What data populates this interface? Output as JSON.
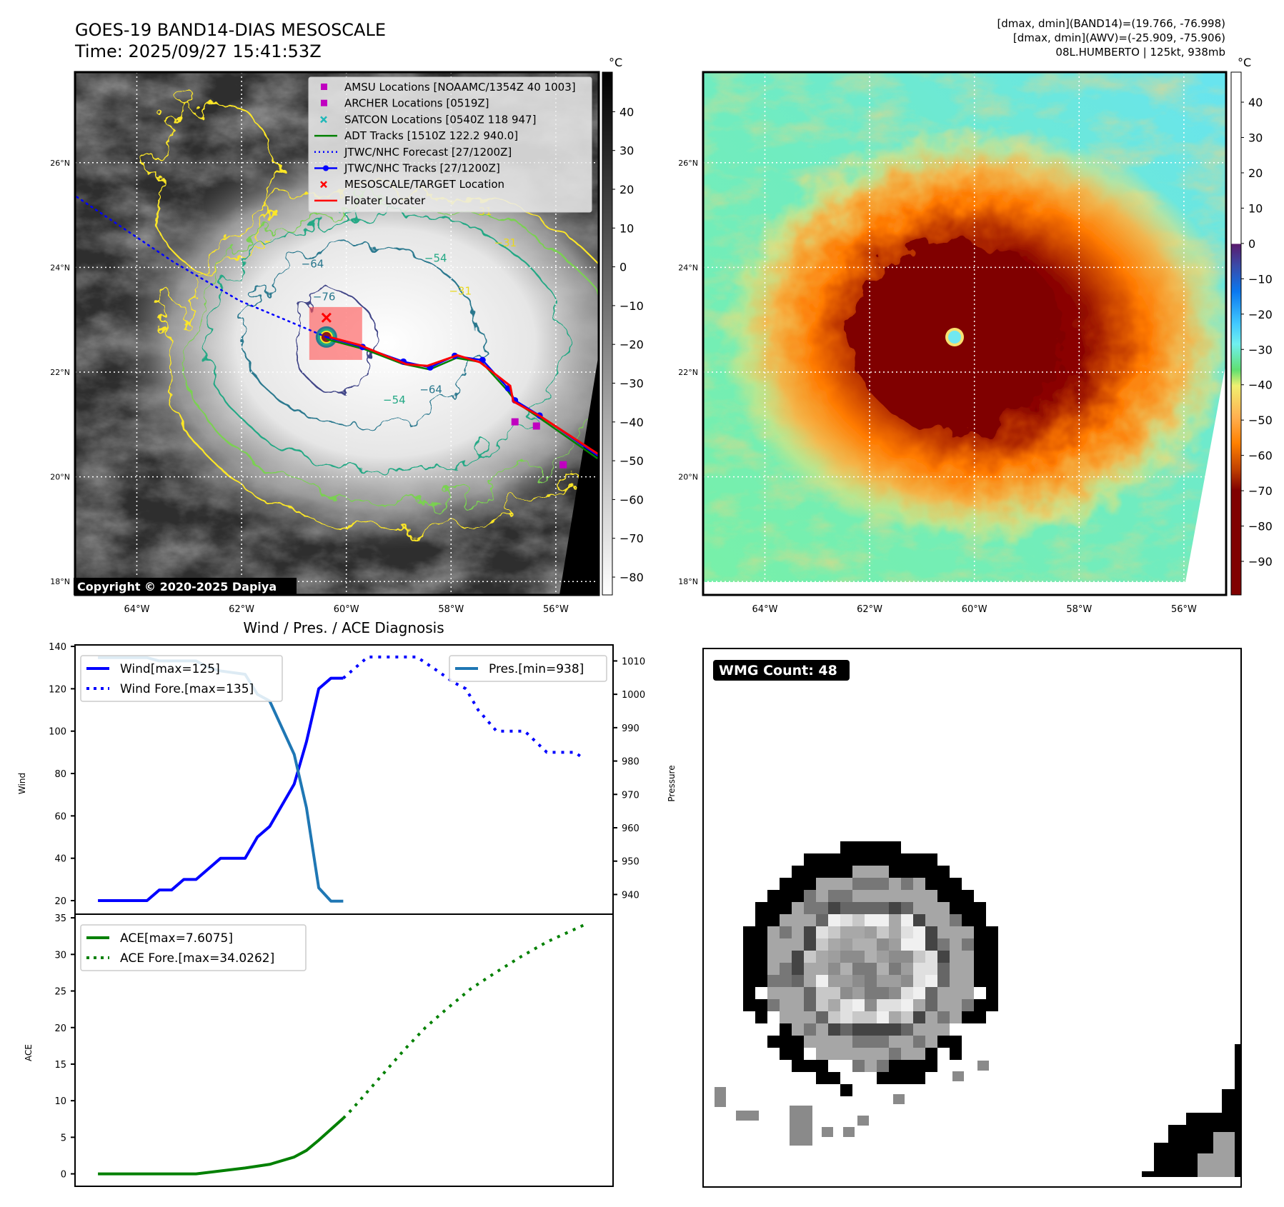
{
  "left_map": {
    "title": "GOES-19 BAND14-DIAS MESOSCALE",
    "time": "Time: 2025/09/27 15:41:53Z",
    "colorbar_unit": "°C",
    "colorbar_ticks": [
      "40",
      "30",
      "20",
      "10",
      "0",
      "−10",
      "−20",
      "−30",
      "−40",
      "−50",
      "−60",
      "−70",
      "−80"
    ],
    "colorbar_tick_values": [
      40,
      30,
      20,
      10,
      0,
      -10,
      -20,
      -30,
      -40,
      -50,
      -60,
      -70,
      -80
    ],
    "colorbar_range": [
      -84.6,
      50.2
    ],
    "lon_ticks": [
      "64°W",
      "62°W",
      "60°W",
      "58°W",
      "56°W"
    ],
    "lon_values": [
      -64,
      -62,
      -60,
      -58,
      -56
    ],
    "lat_ticks": [
      "26°N",
      "24°N",
      "22°N",
      "20°N",
      "18°N"
    ],
    "lat_values": [
      26,
      24,
      22,
      20,
      18
    ],
    "extent": {
      "lon": [
        -65.18,
        -55.18
      ],
      "lat": [
        17.75,
        27.73
      ]
    },
    "legend": [
      {
        "label": "AMSU Locations [NOAAMC/1354Z 40 1003]",
        "color": "#c000c0",
        "marker": "square"
      },
      {
        "label": "ARCHER Locations [0519Z]",
        "color": "#c000c0",
        "marker": "square"
      },
      {
        "label": "SATCON Locations [0540Z 118 947]",
        "color": "#20b8b8",
        "marker": "x"
      },
      {
        "label": "ADT Tracks [1510Z 122.2 940.0]",
        "color": "#008000",
        "marker": "line"
      },
      {
        "label": "JTWC/NHC Forecast [27/1200Z]",
        "color": "#0000ff",
        "marker": "dotted"
      },
      {
        "label": "JTWC/NHC Tracks [27/1200Z]",
        "color": "#0000ff",
        "marker": "line-dot"
      },
      {
        "label": "MESOSCALE/TARGET Location",
        "color": "#ff0000",
        "marker": "x"
      },
      {
        "label": "Floater Locater",
        "color": "#ff0000",
        "marker": "line"
      }
    ],
    "copyright": "Copyright © 2020-2025 Dapiya",
    "storm_center": [
      -60.38,
      22.67
    ],
    "target": [
      -60.38,
      23.04
    ],
    "track_obs": [
      [
        -60.38,
        22.67
      ],
      [
        -59.69,
        22.48
      ],
      [
        -58.91,
        22.2
      ],
      [
        -58.4,
        22.09
      ],
      [
        -57.93,
        22.31
      ],
      [
        -57.4,
        22.23
      ],
      [
        -56.91,
        21.69
      ],
      [
        -56.78,
        21.46
      ],
      [
        -56.31,
        21.17
      ],
      [
        -55.18,
        20.39
      ]
    ],
    "track_forecast": [
      [
        -60.38,
        22.67
      ],
      [
        -62.05,
        23.37
      ],
      [
        -63.31,
        24.11
      ],
      [
        -65.18,
        25.37
      ]
    ],
    "amsu_points": [
      [
        -56.78,
        21.05
      ],
      [
        -56.37,
        20.97
      ],
      [
        -55.86,
        20.23
      ]
    ],
    "contour_labels": [
      {
        "text": "−31",
        "lon": -57.65,
        "lat": 25.0
      },
      {
        "text": "−31",
        "lon": -57.18,
        "lat": 24.4
      },
      {
        "text": "−64",
        "lon": -60.86,
        "lat": 24.0
      },
      {
        "text": "−54",
        "lon": -58.51,
        "lat": 24.11
      },
      {
        "text": "−76",
        "lon": -60.64,
        "lat": 23.37
      },
      {
        "text": "−31",
        "lon": -58.04,
        "lat": 23.48
      },
      {
        "text": "−64",
        "lon": -58.6,
        "lat": 21.6
      },
      {
        "text": "−54",
        "lon": -59.3,
        "lat": 21.4
      }
    ]
  },
  "right_map": {
    "header_lines": [
      "[dmax, dmin](BAND14)=(19.766, -76.998)",
      "[dmax, dmin](AWV)=(-25.909, -75.906)",
      "08L.HUMBERTO | 125kt, 938mb"
    ],
    "colorbar_unit": "°C",
    "colorbar_ticks": [
      "40",
      "30",
      "20",
      "10",
      "0",
      "−10",
      "−20",
      "−30",
      "−40",
      "−50",
      "−60",
      "−70",
      "−80",
      "−90"
    ],
    "colorbar_tick_values": [
      40,
      30,
      20,
      10,
      0,
      -10,
      -20,
      -30,
      -40,
      -50,
      -60,
      -70,
      -80,
      -90
    ],
    "colorbar_range": [
      -99.5,
      48.5
    ]
  },
  "chart_data": [
    {
      "type": "line",
      "title": "Wind / Pres. / ACE Diagnosis",
      "ylabel": "Wind",
      "y2label": "Pressure",
      "ylim": [
        13.6,
        140.7
      ],
      "y2lim": [
        934.1,
        1014.8
      ],
      "xlim": [
        -1.87,
        42.0
      ],
      "yticks": [
        20,
        40,
        60,
        80,
        100,
        120,
        140
      ],
      "y2ticks": [
        940,
        950,
        960,
        970,
        980,
        990,
        1000,
        1010
      ],
      "series": [
        {
          "name": "Wind[max=125]",
          "axis": "left",
          "color": "#0000ff",
          "style": "solid",
          "x": [
            0,
            4,
            5,
            6,
            7,
            8,
            10,
            12,
            13,
            14,
            16,
            17,
            18,
            19,
            20
          ],
          "values": [
            20,
            20,
            25,
            25,
            30,
            30,
            40,
            40,
            50,
            55,
            75,
            95,
            120,
            125,
            125
          ]
        },
        {
          "name": "Wind Fore.[max=135]",
          "axis": "left",
          "color": "#0000ff",
          "style": "dotted",
          "x": [
            20,
            22,
            26,
            27.8,
            29,
            30,
            31,
            32.5,
            34.8,
            36.6,
            38.9,
            39.6
          ],
          "values": [
            125,
            135,
            135,
            128,
            123,
            120,
            110,
            100,
            100,
            90,
            90,
            87
          ]
        },
        {
          "name": "Pres.[min=938]",
          "axis": "right",
          "color": "#1f77b4",
          "style": "solid",
          "x": [
            0,
            4,
            5,
            8,
            9,
            10,
            12,
            13,
            14,
            16,
            17,
            18,
            19,
            20
          ],
          "values": [
            1011,
            1011,
            1010,
            1010,
            1008,
            1007,
            1006,
            1000,
            998,
            982,
            966,
            942,
            938,
            938
          ]
        }
      ],
      "legend_left": [
        "Wind[max=125]",
        "Wind Fore.[max=135]"
      ],
      "legend_right": [
        "Pres.[min=938]"
      ]
    },
    {
      "type": "line",
      "ylabel": "ACE",
      "ylim": [
        -1.7,
        35.5
      ],
      "xlim": [
        -1.87,
        42.0
      ],
      "yticks": [
        0,
        5,
        10,
        15,
        20,
        25,
        30,
        35
      ],
      "series": [
        {
          "name": "ACE[max=7.6075]",
          "color": "#008000",
          "style": "solid",
          "x": [
            0,
            4,
            8,
            12,
            14,
            16,
            17,
            18,
            19,
            20
          ],
          "values": [
            0,
            0,
            0,
            0.8,
            1.3,
            2.3,
            3.2,
            4.6,
            6.1,
            7.6
          ]
        },
        {
          "name": "ACE Fore.[max=34.0262]",
          "color": "#008000",
          "style": "dotted",
          "x": [
            20,
            20.7,
            22.8,
            25,
            26.7,
            28.4,
            30.4,
            32.4,
            34.5,
            36.6,
            39.6
          ],
          "values": [
            7.6,
            8.8,
            12.8,
            17,
            20,
            22.5,
            25.3,
            27.5,
            29.7,
            31.7,
            34.0
          ]
        }
      ],
      "legend": [
        "ACE[max=7.6075]",
        "ACE Fore.[max=34.0262]"
      ]
    }
  ],
  "wmg": {
    "label": "WMG Count: 48"
  }
}
